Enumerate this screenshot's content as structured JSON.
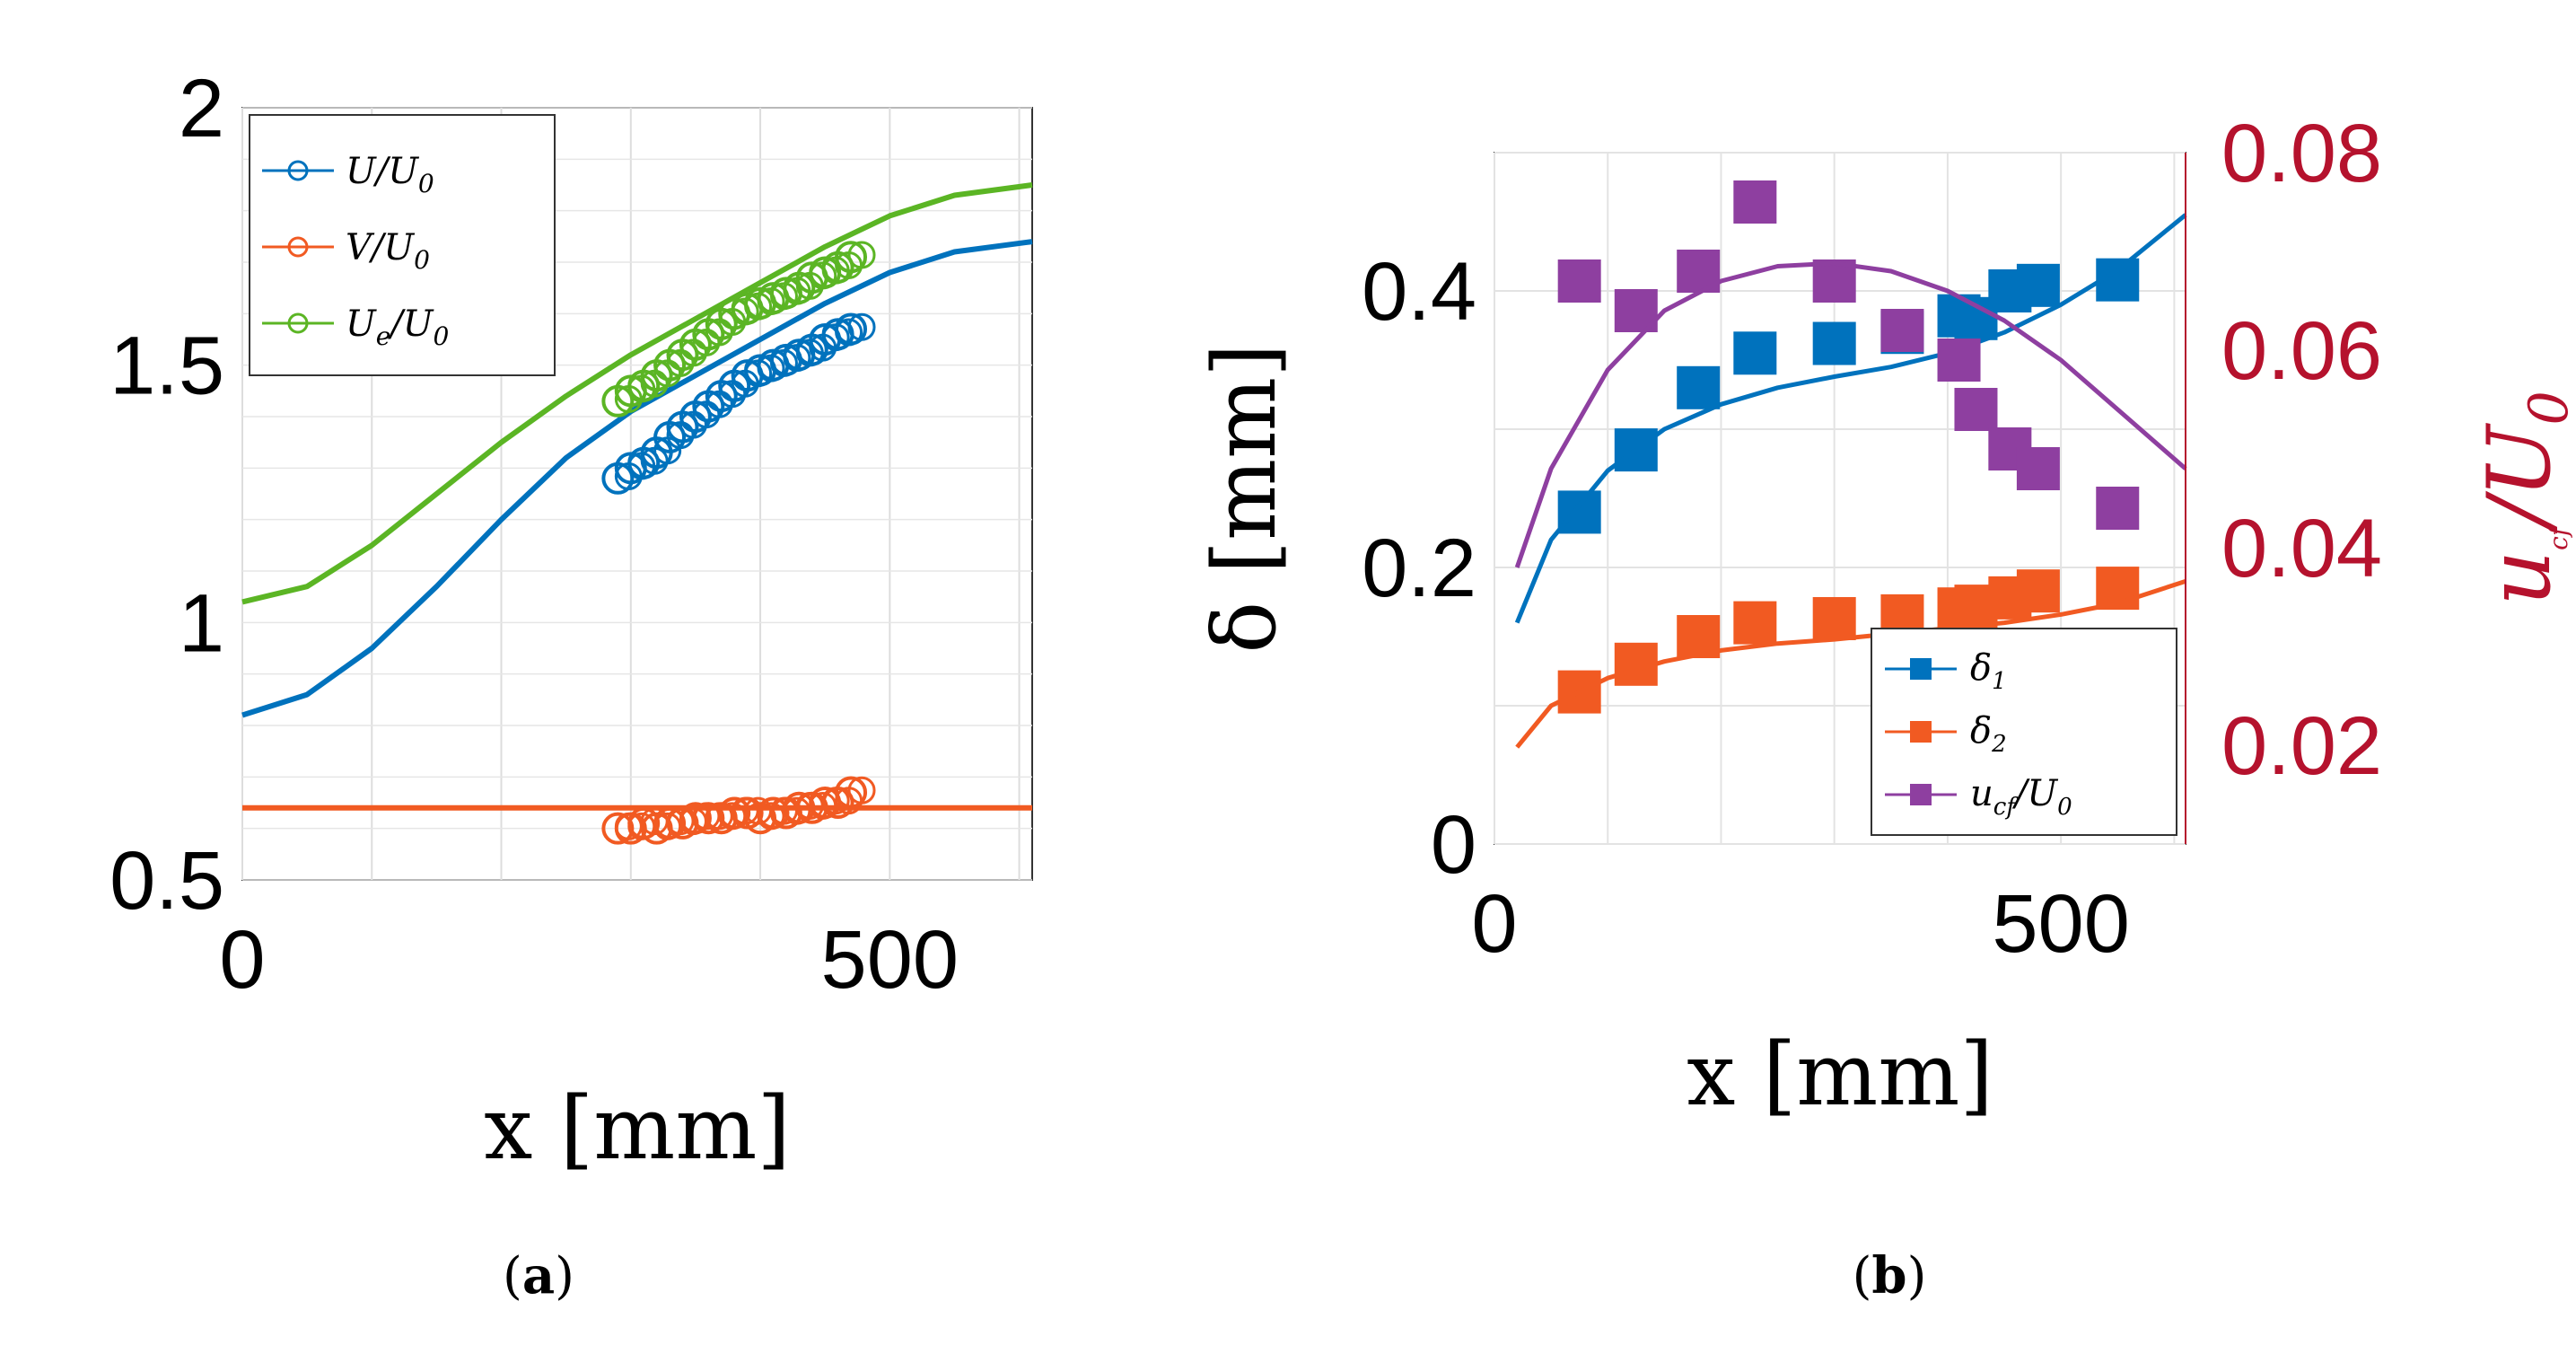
{
  "chart_data": [
    {
      "panel": "a",
      "type": "line",
      "panel_label": "a",
      "xlabel": "x [mm]",
      "ylabel": "",
      "xlim": [
        0,
        610
      ],
      "ylim": [
        0.5,
        2
      ],
      "xticks": [
        "0",
        "500"
      ],
      "xtick_values": [
        0,
        500
      ],
      "yticks": [
        "0.5",
        "1",
        "1.5",
        "2"
      ],
      "ytick_values": [
        0.5,
        1,
        1.5,
        2
      ],
      "grid": "on",
      "legend_position": "top-left",
      "legend": [
        {
          "name": "U",
          "sub": "0",
          "prefix": "",
          "suffix": "/U",
          "label_main": "U",
          "label_tail": "/U",
          "label_sub": "0",
          "color": "#0072bd"
        },
        {
          "name": "V",
          "label_main": "V",
          "label_tail": "/U",
          "label_sub": "0",
          "color": "#f15a22"
        },
        {
          "name": "Ue",
          "label_main": "U",
          "label_tail": "/U",
          "label_sub": "0",
          "label_sub2": "e",
          "color": "#5bb524"
        }
      ],
      "series": [
        {
          "name": "U/U0 fit",
          "color": "#0072bd",
          "x": [
            0,
            50,
            100,
            150,
            200,
            250,
            300,
            350,
            400,
            450,
            500,
            550,
            610
          ],
          "y": [
            0.82,
            0.86,
            0.95,
            1.07,
            1.2,
            1.32,
            1.41,
            1.48,
            1.55,
            1.62,
            1.68,
            1.72,
            1.74
          ]
        },
        {
          "name": "Ue/U0 fit",
          "color": "#5bb524",
          "x": [
            0,
            50,
            100,
            150,
            200,
            250,
            300,
            350,
            400,
            450,
            500,
            550,
            610
          ],
          "y": [
            1.04,
            1.07,
            1.15,
            1.25,
            1.35,
            1.44,
            1.52,
            1.59,
            1.66,
            1.73,
            1.79,
            1.83,
            1.85
          ]
        },
        {
          "name": "V/U0 fit",
          "color": "#f15a22",
          "x": [
            0,
            610
          ],
          "y": [
            0.64,
            0.64
          ]
        },
        {
          "name": "U/U0 data",
          "color": "#0072bd",
          "marker": "circle",
          "x": [
            290,
            300,
            310,
            320,
            330,
            340,
            350,
            360,
            370,
            380,
            390,
            400,
            410,
            420,
            430,
            440,
            450,
            460,
            470
          ],
          "y": [
            1.28,
            1.3,
            1.31,
            1.33,
            1.36,
            1.38,
            1.4,
            1.42,
            1.44,
            1.46,
            1.48,
            1.49,
            1.5,
            1.51,
            1.52,
            1.53,
            1.55,
            1.56,
            1.57
          ]
        },
        {
          "name": "Ue/U0 data",
          "color": "#5bb524",
          "marker": "circle",
          "x": [
            290,
            300,
            310,
            320,
            330,
            340,
            350,
            360,
            370,
            380,
            390,
            400,
            410,
            420,
            430,
            440,
            450,
            460,
            470
          ],
          "y": [
            1.43,
            1.45,
            1.46,
            1.48,
            1.5,
            1.52,
            1.54,
            1.56,
            1.58,
            1.6,
            1.61,
            1.62,
            1.63,
            1.64,
            1.65,
            1.67,
            1.68,
            1.69,
            1.71
          ]
        },
        {
          "name": "V/U0 data",
          "color": "#f15a22",
          "marker": "circle",
          "x": [
            290,
            300,
            310,
            320,
            330,
            340,
            350,
            360,
            370,
            380,
            390,
            400,
            410,
            420,
            430,
            440,
            450,
            460,
            470
          ],
          "y": [
            0.6,
            0.6,
            0.61,
            0.6,
            0.61,
            0.61,
            0.62,
            0.62,
            0.62,
            0.63,
            0.63,
            0.62,
            0.63,
            0.63,
            0.64,
            0.64,
            0.65,
            0.65,
            0.67
          ]
        }
      ]
    },
    {
      "panel": "b",
      "type": "scatter",
      "panel_label": "b",
      "xlabel": "x [mm]",
      "ylabel": "δ [mm]",
      "ylabel_right": "u",
      "ylabel_right_sub": "cf",
      "ylabel_right_tail": "/U",
      "ylabel_right_tail_sub": "0",
      "xlim": [
        0,
        610
      ],
      "ylim": [
        0,
        0.5
      ],
      "ylim_right": [
        0.01,
        0.08
      ],
      "xticks": [
        "0",
        "500"
      ],
      "xtick_values": [
        0,
        500
      ],
      "yticks": [
        "0",
        "0.2",
        "0.4"
      ],
      "ytick_values": [
        0,
        0.2,
        0.4
      ],
      "yticks_right": [
        "0.02",
        "0.04",
        "0.06",
        "0.08"
      ],
      "ytick_values_right": [
        0.02,
        0.04,
        0.06,
        0.08
      ],
      "grid": "on",
      "legend_position": "bottom-right",
      "legend": [
        {
          "name": "delta1",
          "label_main": "δ",
          "label_sub": "1",
          "label_tail": "",
          "color": "#0072bd"
        },
        {
          "name": "delta2",
          "label_main": "δ",
          "label_sub": "2",
          "label_tail": "",
          "color": "#f15a22"
        },
        {
          "name": "ucf",
          "label_main": "u",
          "label_sub": "cf",
          "label_tail": "/U",
          "label_sub2": "0",
          "color": "#8e3fa0"
        }
      ],
      "series": [
        {
          "name": "δ1",
          "color": "#0072bd",
          "marker": "square",
          "axis": "left",
          "x": [
            75,
            125,
            180,
            230,
            300,
            360,
            410,
            425,
            455,
            480,
            550
          ],
          "y": [
            0.24,
            0.285,
            0.33,
            0.355,
            0.362,
            0.37,
            0.382,
            0.38,
            0.4,
            0.404,
            0.408
          ]
        },
        {
          "name": "δ1 fit",
          "color": "#0072bd",
          "axis": "left",
          "x": [
            20,
            50,
            100,
            150,
            200,
            250,
            300,
            350,
            400,
            450,
            500,
            550,
            610
          ],
          "y": [
            0.16,
            0.22,
            0.27,
            0.3,
            0.318,
            0.33,
            0.338,
            0.345,
            0.355,
            0.37,
            0.39,
            0.415,
            0.455
          ]
        },
        {
          "name": "δ2",
          "color": "#f15a22",
          "marker": "square",
          "axis": "left",
          "x": [
            75,
            125,
            180,
            230,
            300,
            360,
            410,
            425,
            455,
            480,
            550
          ],
          "y": [
            0.11,
            0.13,
            0.15,
            0.16,
            0.163,
            0.165,
            0.17,
            0.172,
            0.178,
            0.183,
            0.185
          ]
        },
        {
          "name": "δ2 fit",
          "color": "#f15a22",
          "axis": "left",
          "x": [
            20,
            50,
            100,
            150,
            200,
            250,
            300,
            350,
            400,
            450,
            500,
            550,
            610
          ],
          "y": [
            0.07,
            0.1,
            0.12,
            0.132,
            0.14,
            0.145,
            0.148,
            0.152,
            0.156,
            0.16,
            0.166,
            0.174,
            0.19
          ]
        },
        {
          "name": "ucf/U0",
          "color": "#8e3fa0",
          "marker": "square",
          "axis": "right",
          "x": [
            75,
            125,
            180,
            230,
            300,
            360,
            410,
            425,
            455,
            480,
            550
          ],
          "y": [
            0.067,
            0.064,
            0.068,
            0.075,
            0.067,
            0.062,
            0.059,
            0.054,
            0.05,
            0.048,
            0.044
          ]
        },
        {
          "name": "ucf/U0 fit",
          "color": "#8e3fa0",
          "axis": "right",
          "x": [
            20,
            50,
            100,
            150,
            200,
            250,
            300,
            350,
            400,
            450,
            500,
            550,
            610
          ],
          "y": [
            0.038,
            0.048,
            0.058,
            0.064,
            0.067,
            0.0685,
            0.0688,
            0.068,
            0.066,
            0.063,
            0.059,
            0.054,
            0.048
          ]
        }
      ]
    }
  ]
}
